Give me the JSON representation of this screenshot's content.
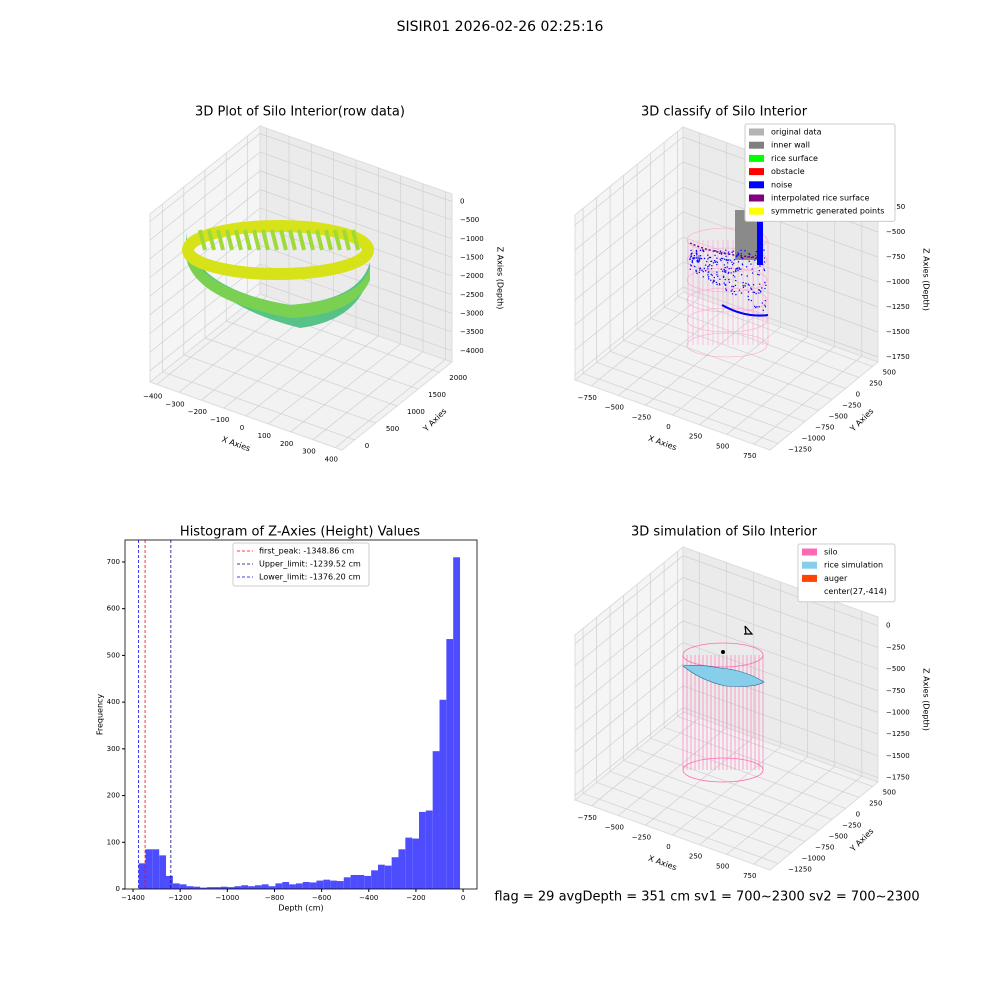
{
  "title": "SISIR01 2026-02-26 02:25:16",
  "footer": "flag = 29  avgDepth = 351 cm  sv1 = 700~2300  sv2 = 700~2300",
  "chart_data": [
    {
      "type": "scatter3d",
      "title": "3D Plot of Silo Interior(row data)",
      "x_label": "X Axies",
      "y_label": "Y Axies",
      "z_label": "Z Axies (Depth)",
      "xlim": [
        -430,
        430
      ],
      "ylim": [
        -300,
        2300
      ],
      "zlim": [
        -4300,
        200
      ],
      "xticks": [
        {
          "value": -400,
          "label": "−400"
        },
        {
          "value": -300,
          "label": "−300"
        },
        {
          "value": -200,
          "label": "−200"
        },
        {
          "value": -100,
          "label": "−100"
        },
        0,
        100,
        200,
        300,
        400
      ],
      "yticks": [
        0,
        500,
        1000,
        1500,
        2000
      ],
      "zticks": [
        0,
        {
          "value": -500,
          "label": "−500"
        },
        {
          "value": -1000,
          "label": "−1000"
        },
        {
          "value": -1500,
          "label": "−1500"
        },
        {
          "value": -2000,
          "label": "−2000"
        },
        {
          "value": -2500,
          "label": "−2500"
        },
        {
          "value": -3000,
          "label": "−3000"
        },
        {
          "value": -3500,
          "label": "−3500"
        },
        {
          "value": -4000,
          "label": "−4000"
        }
      ]
    },
    {
      "type": "scatter3d",
      "title": "3D classify of Silo Interior",
      "x_label": "X Axies",
      "y_label": "Y Axies",
      "z_label": "Z Axies (Depth)",
      "xlim": [
        -900,
        900
      ],
      "ylim": [
        -1400,
        600
      ],
      "zlim": [
        -1800,
        -150
      ],
      "xticks": [
        {
          "value": -750,
          "label": "−750"
        },
        {
          "value": -500,
          "label": "−500"
        },
        {
          "value": -250,
          "label": "−250"
        },
        0,
        250,
        500,
        750
      ],
      "yticks": [
        {
          "value": -1250,
          "label": "−1250"
        },
        {
          "value": -1000,
          "label": "−1000"
        },
        {
          "value": -750,
          "label": "−750"
        },
        {
          "value": -500,
          "label": "−500"
        },
        {
          "value": -250,
          "label": "−250"
        },
        0,
        250,
        500
      ],
      "zticks": [
        {
          "value": -250,
          "label": "−250"
        },
        {
          "value": -500,
          "label": "−500"
        },
        {
          "value": -750,
          "label": "−750"
        },
        {
          "value": -1000,
          "label": "−1000"
        },
        {
          "value": -1250,
          "label": "−1250"
        },
        {
          "value": -1500,
          "label": "−1500"
        },
        {
          "value": -1750,
          "label": "−1750"
        }
      ],
      "legend": [
        {
          "name": "original data",
          "color": "#b3b3b3"
        },
        {
          "name": "inner wall",
          "color": "#808080"
        },
        {
          "name": "rice surface",
          "color": "#00ff00"
        },
        {
          "name": "obstacle",
          "color": "#ff0000"
        },
        {
          "name": "noise",
          "color": "#0000ff"
        },
        {
          "name": "interpolated rice surface",
          "color": "#800080"
        },
        {
          "name": "symmetric generated points",
          "color": "#ffff00"
        }
      ]
    },
    {
      "type": "histogram",
      "title": "Histogram of Z-Axies (Height) Values",
      "x_label": "Depth (cm)",
      "y_label": "Frequency",
      "color": "#4d4dff",
      "bins": [
        -1376,
        -1347,
        -1318,
        -1289,
        -1260,
        -1231,
        -1202,
        -1173,
        -1144,
        -1115,
        -1086,
        -1057,
        -1028,
        -999,
        -970,
        -941,
        -912,
        -883,
        -854,
        -825,
        -796,
        -767,
        -738,
        -709,
        -680,
        -651,
        -622,
        -593,
        -564,
        -535,
        -506,
        -477,
        -448,
        -419,
        -390,
        -361,
        -332,
        -303,
        -274,
        -245,
        -216,
        -187,
        -158,
        -129,
        -100,
        -71,
        -42,
        -13
      ],
      "counts": [
        55,
        85,
        85,
        72,
        28,
        12,
        10,
        6,
        5,
        3,
        4,
        4,
        5,
        4,
        6,
        8,
        6,
        8,
        10,
        6,
        12,
        15,
        10,
        12,
        15,
        14,
        18,
        20,
        18,
        17,
        25,
        30,
        30,
        28,
        40,
        52,
        50,
        68,
        85,
        110,
        108,
        165,
        168,
        295,
        405,
        535,
        710
      ],
      "xlim": [
        -1434,
        59
      ],
      "ylim": [
        0,
        747
      ],
      "xticks": [
        {
          "value": -1400,
          "label": "−1400"
        },
        {
          "value": -1200,
          "label": "−1200"
        },
        {
          "value": -1000,
          "label": "−1000"
        },
        {
          "value": -800,
          "label": "−800"
        },
        {
          "value": -600,
          "label": "−600"
        },
        {
          "value": -400,
          "label": "−400"
        },
        {
          "value": -200,
          "label": "−200"
        },
        0
      ],
      "yticks": [
        0,
        100,
        200,
        300,
        400,
        500,
        600,
        700
      ],
      "vlines": [
        {
          "name": "first_peak: -1348.86 cm",
          "value": -1348.86,
          "color": "#ff0000"
        },
        {
          "name": "Upper_limit: -1239.52 cm",
          "value": -1239.52,
          "color": "#00008b"
        },
        {
          "name": "Lower_limit: -1376.20 cm",
          "value": -1376.2,
          "color": "#0000ff"
        }
      ]
    },
    {
      "type": "scatter3d",
      "title": "3D simulation of Silo Interior",
      "x_label": "X Axies",
      "y_label": "Y Axies",
      "z_label": "Z Axies (Depth)",
      "xlim": [
        -900,
        900
      ],
      "ylim": [
        -1400,
        600
      ],
      "zlim": [
        -1800,
        100
      ],
      "xticks": [
        {
          "value": -750,
          "label": "−750"
        },
        {
          "value": -500,
          "label": "−500"
        },
        {
          "value": -250,
          "label": "−250"
        },
        0,
        250,
        500,
        750
      ],
      "yticks": [
        {
          "value": -1250,
          "label": "−1250"
        },
        {
          "value": -1000,
          "label": "−1000"
        },
        {
          "value": -750,
          "label": "−750"
        },
        {
          "value": -500,
          "label": "−500"
        },
        {
          "value": -250,
          "label": "−250"
        },
        0,
        250,
        500
      ],
      "zticks": [
        0,
        {
          "value": -250,
          "label": "−250"
        },
        {
          "value": -500,
          "label": "−500"
        },
        {
          "value": -750,
          "label": "−750"
        },
        {
          "value": -1000,
          "label": "−1000"
        },
        {
          "value": -1250,
          "label": "−1250"
        },
        {
          "value": -1500,
          "label": "−1500"
        },
        {
          "value": -1750,
          "label": "−1750"
        }
      ],
      "legend": [
        {
          "name": "silo",
          "color": "#ff69b4"
        },
        {
          "name": "rice simulation",
          "color": "#87ceeb"
        },
        {
          "name": "auger",
          "color": "#ff4500"
        },
        {
          "name": "center(27,-414)"
        }
      ]
    }
  ]
}
